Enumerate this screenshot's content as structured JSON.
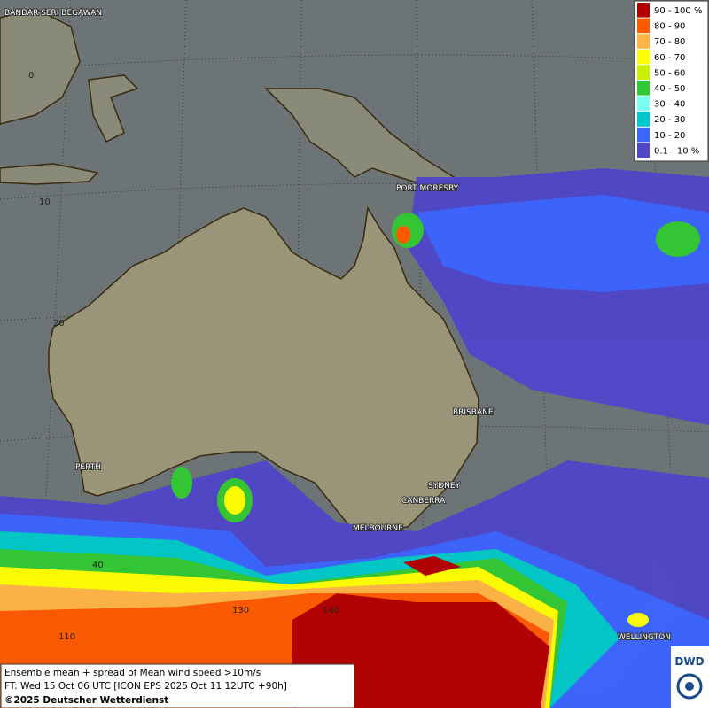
{
  "legend": {
    "items": [
      {
        "label": "90 - 100 %",
        "color": "#b40000"
      },
      {
        "label": "80 - 90",
        "color": "#ff5a00"
      },
      {
        "label": "70 - 80",
        "color": "#ffb446"
      },
      {
        "label": "60 - 70",
        "color": "#ffff00"
      },
      {
        "label": "50 - 60",
        "color": "#c8f000"
      },
      {
        "label": "40 - 50",
        "color": "#32c832"
      },
      {
        "label": "30 - 40",
        "color": "#78fff0"
      },
      {
        "label": "20 - 30",
        "color": "#00c8c8"
      },
      {
        "label": "10 - 20",
        "color": "#3c64ff"
      },
      {
        "label": "0.1 - 10 %",
        "color": "#5046c8"
      }
    ]
  },
  "cities": [
    "BANDAR SERI BEGAWAN",
    "PORT MORESBY",
    "BRISBANE",
    "PERTH",
    "SYDNEY",
    "CANBERRA",
    "MELBOURNE",
    "WELLINGTON"
  ],
  "grid_labels": [
    "0",
    "10",
    "20",
    "40",
    "110",
    "130",
    "140"
  ],
  "caption": {
    "line1": "Ensemble mean + spread of Mean wind speed >10m/s",
    "line2": "FT: Wed 15 Oct 06 UTC [ICON EPS 2025 Oct 11 12UTC +90h]",
    "line3": "©2025 Deutscher Wetterdienst"
  },
  "logo": "DWD"
}
